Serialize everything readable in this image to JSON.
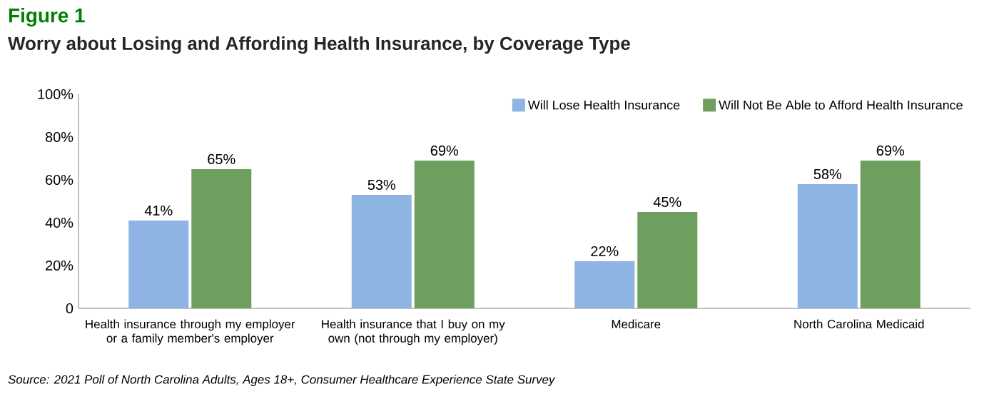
{
  "chart_data": {
    "type": "bar",
    "title": "Figure 1",
    "subtitle": "Worry about Losing and Affording Health Insurance, by Coverage Type",
    "categories": [
      "Health insurance through my employer or a family member's employer",
      "Health insurance that I buy on my own (not through my employer)",
      "Medicare",
      "North Carolina Medicaid"
    ],
    "series": [
      {
        "name": "Will Lose Health Insurance",
        "color": "#8db4e2",
        "values": [
          41,
          53,
          22,
          58
        ],
        "value_labels": [
          "41%",
          "53%",
          "22%",
          "58%"
        ]
      },
      {
        "name": "Will Not Be Able to Afford Health Insurance",
        "color": "#6f9f5f",
        "values": [
          65,
          69,
          45,
          69
        ],
        "value_labels": [
          "65%",
          "69%",
          "45%",
          "69%"
        ]
      }
    ],
    "ylim": [
      0,
      100
    ],
    "yticks": [
      0,
      {
        "value": 20,
        "label": "20%"
      },
      {
        "value": 40,
        "label": "40%"
      },
      {
        "value": 60,
        "label": "60%"
      },
      {
        "value": 80,
        "label": "80%"
      },
      {
        "value": 100,
        "label": "100%"
      }
    ],
    "grid": false,
    "legend": "top right",
    "annotations": [
      "Source: 2021 Poll of North Carolina Adults, Ages 18+, Consumer Healthcare Experience State Survey"
    ]
  }
}
